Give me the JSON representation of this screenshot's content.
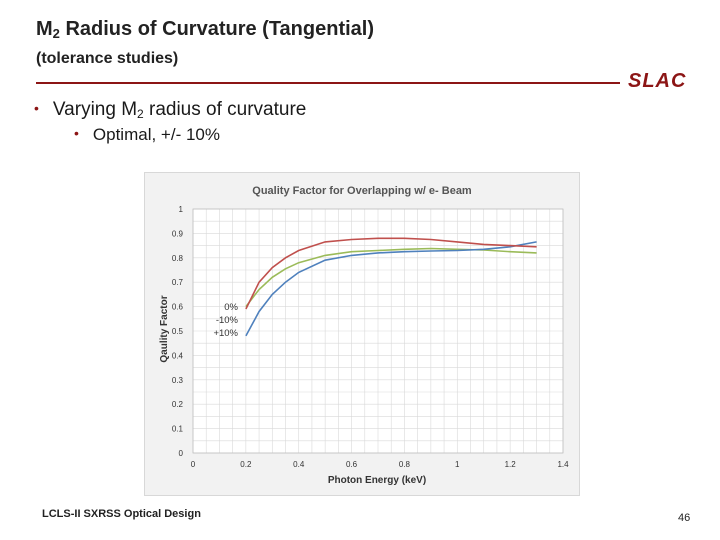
{
  "slide": {
    "title_prefix": "M",
    "title_sub": "2",
    "title_rest": " Radius of Curvature (Tangential)",
    "subtitle": "(tolerance studies)",
    "logo": "SLAC",
    "bullet1_prefix": "Varying M",
    "bullet1_sub": "2",
    "bullet1_rest": " radius of curvature",
    "bullet2": "Optimal, +/- 10%",
    "footer": "LCLS-II SXRSS Optical Design",
    "page_number": "46",
    "accent_color": "#8c1515"
  },
  "chart_data": {
    "type": "line",
    "title": "Quality Factor for Overlapping w/ e- Beam",
    "xlabel": "Photon Energy (keV)",
    "ylabel": "Qaulity Factor",
    "xlim": [
      0,
      1.4
    ],
    "ylim": [
      0,
      1
    ],
    "x_ticks": [
      "0",
      "0.2",
      "0.4",
      "0.6",
      "0.8",
      "1",
      "1.2",
      "1.4"
    ],
    "y_ticks": [
      "0",
      "0.1",
      "0.2",
      "0.3",
      "0.4",
      "0.5",
      "0.6",
      "0.7",
      "0.8",
      "0.9",
      "1"
    ],
    "grid": true,
    "legend_position": "left-middle",
    "series": [
      {
        "name": "0%",
        "color": "#9bbb59",
        "x": [
          0.2,
          0.25,
          0.3,
          0.35,
          0.4,
          0.5,
          0.6,
          0.7,
          0.8,
          0.9,
          1.0,
          1.1,
          1.2,
          1.3
        ],
        "y": [
          0.6,
          0.67,
          0.72,
          0.755,
          0.78,
          0.81,
          0.825,
          0.83,
          0.835,
          0.838,
          0.835,
          0.832,
          0.825,
          0.82
        ]
      },
      {
        "name": "-10%",
        "color": "#4f81bd",
        "x": [
          0.2,
          0.25,
          0.3,
          0.35,
          0.4,
          0.5,
          0.6,
          0.7,
          0.8,
          0.9,
          1.0,
          1.1,
          1.2,
          1.3
        ],
        "y": [
          0.48,
          0.58,
          0.65,
          0.7,
          0.74,
          0.79,
          0.81,
          0.82,
          0.825,
          0.828,
          0.83,
          0.835,
          0.845,
          0.865
        ]
      },
      {
        "name": "+10%",
        "color": "#c0504d",
        "x": [
          0.2,
          0.25,
          0.3,
          0.35,
          0.4,
          0.5,
          0.6,
          0.7,
          0.8,
          0.9,
          1.0,
          1.1,
          1.2,
          1.3
        ],
        "y": [
          0.59,
          0.7,
          0.76,
          0.8,
          0.83,
          0.865,
          0.875,
          0.88,
          0.88,
          0.875,
          0.865,
          0.855,
          0.85,
          0.845
        ]
      }
    ]
  }
}
